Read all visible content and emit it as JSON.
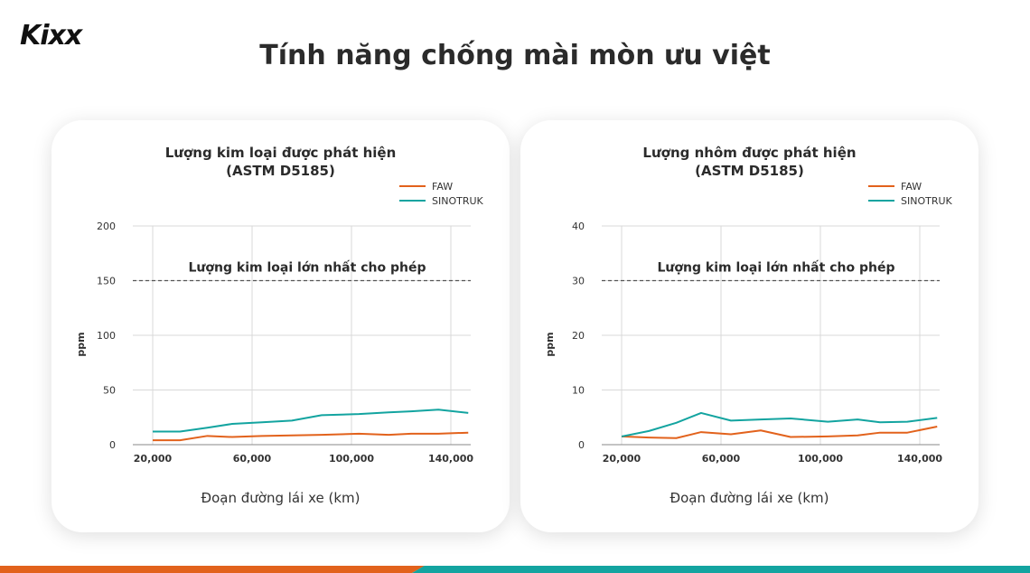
{
  "header": {
    "logo_text": "Kixx",
    "title": "Tính năng chống mài mòn ưu việt"
  },
  "colors": {
    "faw": "#e2621c",
    "sinotruk": "#13a4a0",
    "grid": "#d9d9d9",
    "threshold": "#555555",
    "footer_orange": "#e2621c",
    "footer_teal": "#13a4a0"
  },
  "chart_data": [
    {
      "type": "line",
      "title_line1": "Lượng kim loại được phát hiện",
      "title_line2": "(ASTM D5185)",
      "xlabel": "Đoạn đường lái xe (km)",
      "ylabel": "ppm",
      "ylim": [
        0,
        200
      ],
      "xlim": [
        12000,
        148000
      ],
      "yticks": [
        0,
        50,
        100,
        150,
        200
      ],
      "xticks": [
        20000,
        60000,
        100000,
        140000
      ],
      "xtick_labels": [
        "20,000",
        "60,000",
        "100,000",
        "140,000"
      ],
      "grid": true,
      "legend_position": "top-right",
      "threshold": {
        "value": 150,
        "label": "Lượng kim loại lớn nhất cho phép"
      },
      "series": [
        {
          "name": "FAW",
          "x": [
            20000,
            31000,
            42000,
            52000,
            64000,
            76000,
            88000,
            103000,
            115000,
            124000,
            135000,
            147000
          ],
          "values": [
            4,
            4,
            8,
            7,
            8,
            8.5,
            9,
            10,
            9,
            10,
            10,
            11
          ]
        },
        {
          "name": "SINOTRUK",
          "x": [
            20000,
            31000,
            42000,
            52000,
            64000,
            76000,
            88000,
            103000,
            115000,
            124000,
            135000,
            147000
          ],
          "values": [
            12,
            12,
            15.5,
            19,
            20.5,
            22,
            27,
            28,
            29.5,
            30.5,
            32,
            29
          ]
        }
      ]
    },
    {
      "type": "line",
      "title_line1": "Lượng nhôm được phát hiện",
      "title_line2": "(ASTM D5185)",
      "xlabel": "Đoạn đường lái xe (km)",
      "ylabel": "ppm",
      "ylim": [
        0,
        40
      ],
      "xlim": [
        12000,
        148000
      ],
      "yticks": [
        0,
        10,
        20,
        30,
        40
      ],
      "xticks": [
        20000,
        60000,
        100000,
        140000
      ],
      "xtick_labels": [
        "20,000",
        "60,000",
        "100,000",
        "140,000"
      ],
      "grid": true,
      "legend_position": "top-right",
      "threshold": {
        "value": 30,
        "label": "Lượng kim loại lớn nhất cho phép"
      },
      "series": [
        {
          "name": "FAW",
          "x": [
            20000,
            31000,
            42000,
            52000,
            64000,
            76000,
            88000,
            103000,
            115000,
            124000,
            135000,
            147000
          ],
          "values": [
            1.5,
            1.3,
            1.2,
            2.3,
            1.9,
            2.6,
            1.4,
            1.5,
            1.7,
            2.2,
            2.2,
            3.3
          ]
        },
        {
          "name": "SINOTRUK",
          "x": [
            20000,
            31000,
            42000,
            52000,
            64000,
            76000,
            88000,
            103000,
            115000,
            124000,
            135000,
            147000
          ],
          "values": [
            1.5,
            2.5,
            4.0,
            5.8,
            4.4,
            4.6,
            4.8,
            4.2,
            4.6,
            4.1,
            4.2,
            4.9
          ]
        }
      ]
    }
  ]
}
